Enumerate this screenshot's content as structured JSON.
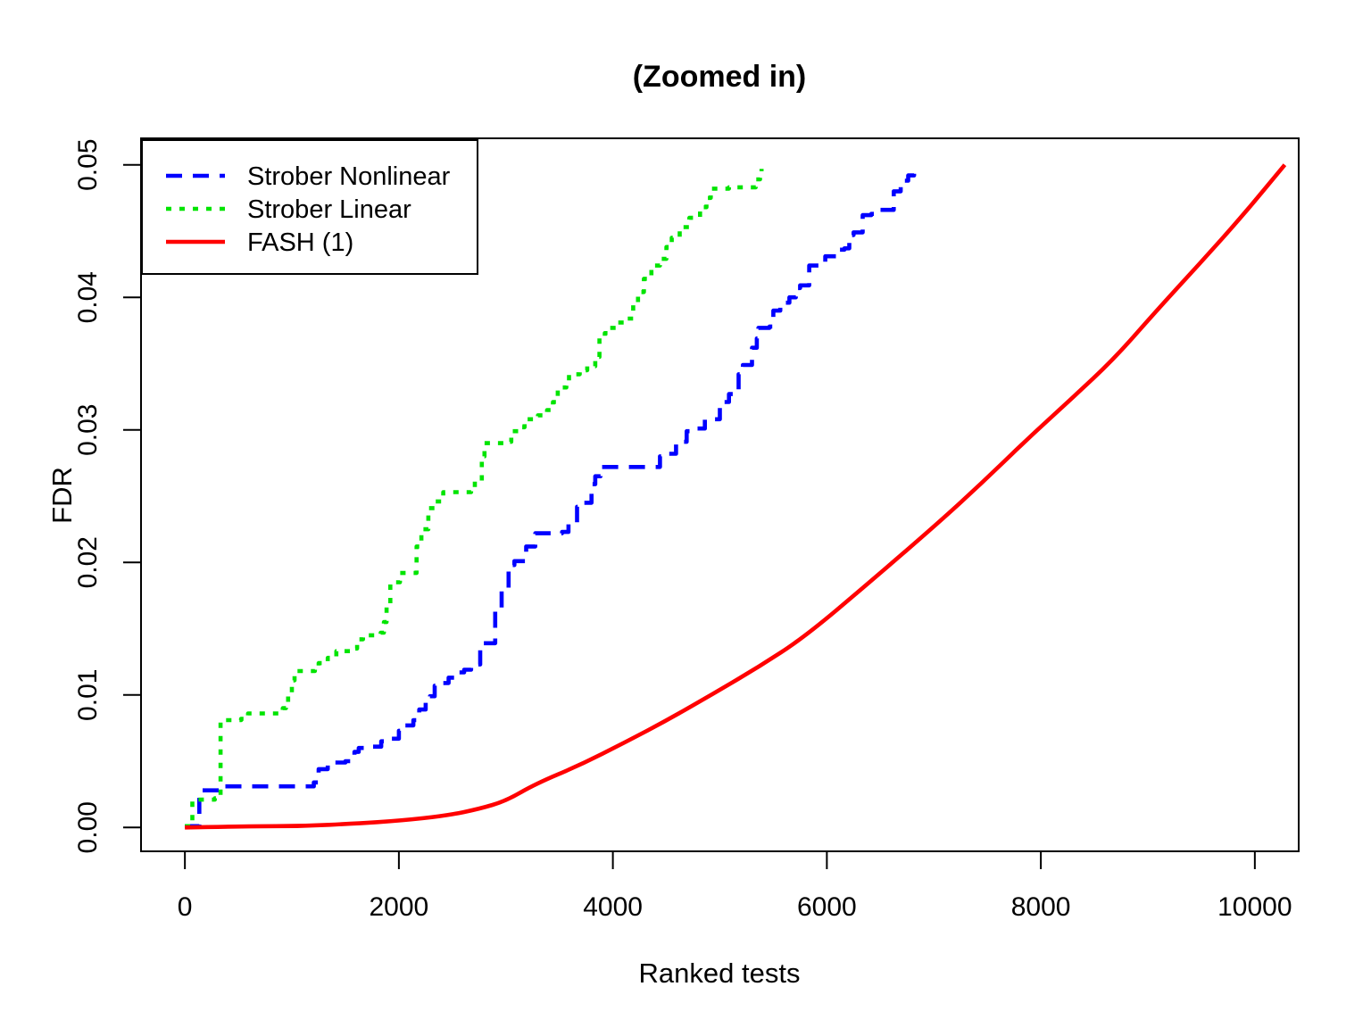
{
  "chart_data": {
    "type": "line",
    "title": "(Zoomed in)",
    "xlabel": "Ranked tests",
    "ylabel": "FDR",
    "xlim": [
      -410,
      10410
    ],
    "ylim": [
      -0.0018,
      0.052
    ],
    "grid": false,
    "legend_position": "top-left",
    "x_ticks": {
      "values": [
        0,
        2000,
        4000,
        6000,
        8000,
        10000
      ],
      "labels": [
        "0",
        "2000",
        "4000",
        "6000",
        "8000",
        "10000"
      ]
    },
    "y_ticks": {
      "values": [
        0.0,
        0.01,
        0.02,
        0.03,
        0.04,
        0.05
      ],
      "labels": [
        "0.00",
        "0.01",
        "0.02",
        "0.03",
        "0.04",
        "0.05"
      ]
    },
    "series": [
      {
        "name": "Strober Nonlinear",
        "color": "#0000ff",
        "style": "dashed",
        "interpolation": "step-after",
        "points": [
          [
            0,
            0.0001
          ],
          [
            135,
            0.0028
          ],
          [
            360,
            0.0031
          ],
          [
            1205,
            0.0034
          ],
          [
            1250,
            0.0044
          ],
          [
            1335,
            0.0049
          ],
          [
            1500,
            0.005
          ],
          [
            1545,
            0.0052
          ],
          [
            1585,
            0.0057
          ],
          [
            1625,
            0.006
          ],
          [
            1750,
            0.0061
          ],
          [
            1835,
            0.0065
          ],
          [
            1885,
            0.0067
          ],
          [
            2000,
            0.0073
          ],
          [
            2050,
            0.0077
          ],
          [
            2135,
            0.0081
          ],
          [
            2190,
            0.0089
          ],
          [
            2250,
            0.0097
          ],
          [
            2290,
            0.0099
          ],
          [
            2335,
            0.0107
          ],
          [
            2400,
            0.0109
          ],
          [
            2465,
            0.0113
          ],
          [
            2540,
            0.0117
          ],
          [
            2610,
            0.0119
          ],
          [
            2675,
            0.0123
          ],
          [
            2760,
            0.0139
          ],
          [
            2900,
            0.0165
          ],
          [
            2960,
            0.018
          ],
          [
            3025,
            0.0198
          ],
          [
            3080,
            0.0201
          ],
          [
            3190,
            0.0212
          ],
          [
            3275,
            0.0222
          ],
          [
            3525,
            0.0223
          ],
          [
            3585,
            0.0229
          ],
          [
            3665,
            0.0242
          ],
          [
            3710,
            0.0245
          ],
          [
            3800,
            0.0259
          ],
          [
            3835,
            0.0265
          ],
          [
            3885,
            0.0272
          ],
          [
            4415,
            0.0272
          ],
          [
            4440,
            0.028
          ],
          [
            4500,
            0.0282
          ],
          [
            4590,
            0.0291
          ],
          [
            4690,
            0.0299
          ],
          [
            4775,
            0.0301
          ],
          [
            4860,
            0.0308
          ],
          [
            5000,
            0.0321
          ],
          [
            5085,
            0.0327
          ],
          [
            5175,
            0.0342
          ],
          [
            5215,
            0.0349
          ],
          [
            5300,
            0.0362
          ],
          [
            5345,
            0.0369
          ],
          [
            5360,
            0.0377
          ],
          [
            5465,
            0.0378
          ],
          [
            5500,
            0.039
          ],
          [
            5565,
            0.0396
          ],
          [
            5650,
            0.04
          ],
          [
            5710,
            0.0407
          ],
          [
            5750,
            0.0409
          ],
          [
            5835,
            0.0424
          ],
          [
            5955,
            0.0425
          ],
          [
            5985,
            0.0431
          ],
          [
            6085,
            0.0436
          ],
          [
            6165,
            0.0437
          ],
          [
            6210,
            0.0447
          ],
          [
            6250,
            0.0449
          ],
          [
            6335,
            0.0462
          ],
          [
            6415,
            0.0463
          ],
          [
            6500,
            0.0466
          ],
          [
            6625,
            0.048
          ],
          [
            6690,
            0.0488
          ],
          [
            6760,
            0.0492
          ],
          [
            6815,
            0.05
          ]
        ]
      },
      {
        "name": "Strober Linear",
        "color": "#00e400",
        "style": "dotted",
        "interpolation": "step-after",
        "points": [
          [
            0,
            0.0001
          ],
          [
            70,
            0.0021
          ],
          [
            280,
            0.0022
          ],
          [
            333,
            0.0081
          ],
          [
            525,
            0.0082
          ],
          [
            590,
            0.0086
          ],
          [
            915,
            0.009
          ],
          [
            945,
            0.0094
          ],
          [
            965,
            0.0101
          ],
          [
            1000,
            0.0111
          ],
          [
            1025,
            0.0118
          ],
          [
            1215,
            0.012
          ],
          [
            1250,
            0.0124
          ],
          [
            1335,
            0.0128
          ],
          [
            1415,
            0.0133
          ],
          [
            1580,
            0.0135
          ],
          [
            1610,
            0.0142
          ],
          [
            1665,
            0.0145
          ],
          [
            1830,
            0.0147
          ],
          [
            1860,
            0.0155
          ],
          [
            1885,
            0.0168
          ],
          [
            1920,
            0.0185
          ],
          [
            2010,
            0.0192
          ],
          [
            2165,
            0.0212
          ],
          [
            2210,
            0.0225
          ],
          [
            2275,
            0.0241
          ],
          [
            2335,
            0.0246
          ],
          [
            2415,
            0.0253
          ],
          [
            2675,
            0.0254
          ],
          [
            2710,
            0.0261
          ],
          [
            2775,
            0.028
          ],
          [
            2800,
            0.029
          ],
          [
            3000,
            0.0291
          ],
          [
            3050,
            0.0299
          ],
          [
            3150,
            0.0302
          ],
          [
            3175,
            0.0308
          ],
          [
            3300,
            0.0311
          ],
          [
            3385,
            0.0315
          ],
          [
            3440,
            0.0321
          ],
          [
            3485,
            0.0332
          ],
          [
            3565,
            0.0336
          ],
          [
            3590,
            0.0342
          ],
          [
            3690,
            0.0345
          ],
          [
            3760,
            0.0348
          ],
          [
            3835,
            0.0355
          ],
          [
            3875,
            0.037
          ],
          [
            3925,
            0.0373
          ],
          [
            3965,
            0.0377
          ],
          [
            4050,
            0.0381
          ],
          [
            4135,
            0.0384
          ],
          [
            4190,
            0.0394
          ],
          [
            4235,
            0.0404
          ],
          [
            4290,
            0.0414
          ],
          [
            4360,
            0.0424
          ],
          [
            4440,
            0.0429
          ],
          [
            4500,
            0.0438
          ],
          [
            4550,
            0.0445
          ],
          [
            4625,
            0.0453
          ],
          [
            4715,
            0.046
          ],
          [
            4815,
            0.0468
          ],
          [
            4875,
            0.0475
          ],
          [
            4915,
            0.0482
          ],
          [
            5085,
            0.0483
          ],
          [
            5335,
            0.0489
          ],
          [
            5375,
            0.0493
          ],
          [
            5390,
            0.0497
          ]
        ]
      },
      {
        "name": "FASH (1)",
        "color": "#ff0000",
        "style": "solid",
        "interpolation": "smooth",
        "points": [
          [
            0,
            0.0
          ],
          [
            600,
            0.0001
          ],
          [
            1100,
            0.0001
          ],
          [
            1600,
            0.0003
          ],
          [
            2000,
            0.0005
          ],
          [
            2450,
            0.0009
          ],
          [
            2750,
            0.0014
          ],
          [
            3000,
            0.002
          ],
          [
            3280,
            0.0033
          ],
          [
            3690,
            0.0047
          ],
          [
            4110,
            0.0064
          ],
          [
            4530,
            0.0082
          ],
          [
            4940,
            0.0101
          ],
          [
            5360,
            0.0121
          ],
          [
            5780,
            0.0143
          ],
          [
            6400,
            0.0185
          ],
          [
            7030,
            0.0229
          ],
          [
            7450,
            0.026
          ],
          [
            7860,
            0.0292
          ],
          [
            8280,
            0.0323
          ],
          [
            8690,
            0.0354
          ],
          [
            9070,
            0.0389
          ],
          [
            9480,
            0.0425
          ],
          [
            9890,
            0.0462
          ],
          [
            10280,
            0.05
          ]
        ]
      }
    ]
  }
}
